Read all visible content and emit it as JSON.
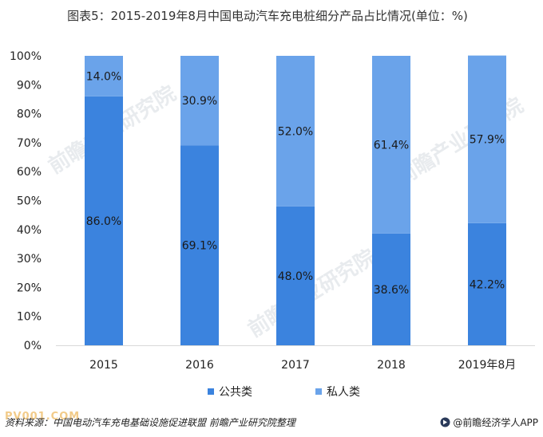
{
  "chart_data": {
    "type": "bar",
    "stacked": true,
    "percent": true,
    "title": "图表5：2015-2019年8月中国电动汽车充电桩细分产品占比情况(单位：%)",
    "categories": [
      "2015",
      "2016",
      "2017",
      "2018",
      "2019年8月"
    ],
    "series": [
      {
        "name": "公共类",
        "values": [
          86.0,
          69.1,
          48.0,
          38.6,
          42.2
        ],
        "labels": [
          "86.0%",
          "69.1%",
          "48.0%",
          "38.6%",
          "42.2%"
        ],
        "color": "#3b83de"
      },
      {
        "name": "私人类",
        "values": [
          14.0,
          30.9,
          52.0,
          61.4,
          57.9
        ],
        "labels": [
          "14.0%",
          "30.9%",
          "52.0%",
          "61.4%",
          "57.9%"
        ],
        "color": "#6aa3ea"
      }
    ],
    "ylim": [
      0,
      100
    ],
    "yticks": [
      "0%",
      "10%",
      "20%",
      "30%",
      "40%",
      "50%",
      "60%",
      "70%",
      "80%",
      "90%",
      "100%"
    ],
    "grid": false,
    "legend": "bottom",
    "xlabel": "",
    "ylabel": ""
  },
  "footer": {
    "source": "资料来源：中国电动汽车充电基础设施促进联盟 前瞻产业研究院整理",
    "watermark": "PV001.COM",
    "brand": "@前瞻经济学人APP"
  },
  "watermarks": [
    "前瞻产业研究院",
    "前瞻产业研究院",
    "前瞻产业研究院"
  ]
}
